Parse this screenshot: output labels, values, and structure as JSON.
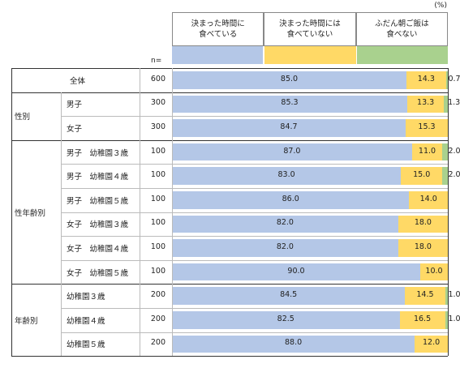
{
  "unit_label": "(%)",
  "n_header": "n=",
  "colors": {
    "s1": "#b4c7e7",
    "s2": "#ffd966",
    "s3": "#a9d18e"
  },
  "chart_data": {
    "type": "bar",
    "orientation": "horizontal",
    "stacked": true,
    "series": [
      {
        "name": "決まった時間に\n食べている",
        "color": "#b4c7e7"
      },
      {
        "name": "決まった時間には\n食べていない",
        "color": "#ffd966"
      },
      {
        "name": "ふだん朝ご飯は\n食べない",
        "color": "#a9d18e"
      }
    ],
    "groups": [
      {
        "label": "",
        "rows": [
          {
            "label": "全体",
            "n": "600",
            "values": [
              85.0,
              14.3,
              0.7
            ]
          }
        ]
      },
      {
        "label": "性別",
        "rows": [
          {
            "label": "男子",
            "n": "300",
            "values": [
              85.3,
              13.3,
              1.3
            ]
          },
          {
            "label": "女子",
            "n": "300",
            "values": [
              84.7,
              15.3,
              0
            ]
          }
        ]
      },
      {
        "label": "性年齢別",
        "rows": [
          {
            "label": "男子　幼稚園３歳",
            "n": "100",
            "values": [
              87.0,
              11.0,
              2.0
            ]
          },
          {
            "label": "男子　幼稚園４歳",
            "n": "100",
            "values": [
              83.0,
              15.0,
              2.0
            ]
          },
          {
            "label": "男子　幼稚園５歳",
            "n": "100",
            "values": [
              86.0,
              14.0,
              0
            ]
          },
          {
            "label": "女子　幼稚園３歳",
            "n": "100",
            "values": [
              82.0,
              18.0,
              0
            ]
          },
          {
            "label": "女子　幼稚園４歳",
            "n": "100",
            "values": [
              82.0,
              18.0,
              0
            ]
          },
          {
            "label": "女子　幼稚園５歳",
            "n": "100",
            "values": [
              90.0,
              10.0,
              0
            ]
          }
        ]
      },
      {
        "label": "年齢別",
        "rows": [
          {
            "label": "幼稚園３歳",
            "n": "200",
            "values": [
              84.5,
              14.5,
              1.0
            ]
          },
          {
            "label": "幼稚園４歳",
            "n": "200",
            "values": [
              82.5,
              16.5,
              1.0
            ]
          },
          {
            "label": "幼稚園５歳",
            "n": "200",
            "values": [
              88.0,
              12.0,
              0
            ]
          }
        ]
      }
    ],
    "xlim": [
      0,
      100
    ]
  }
}
